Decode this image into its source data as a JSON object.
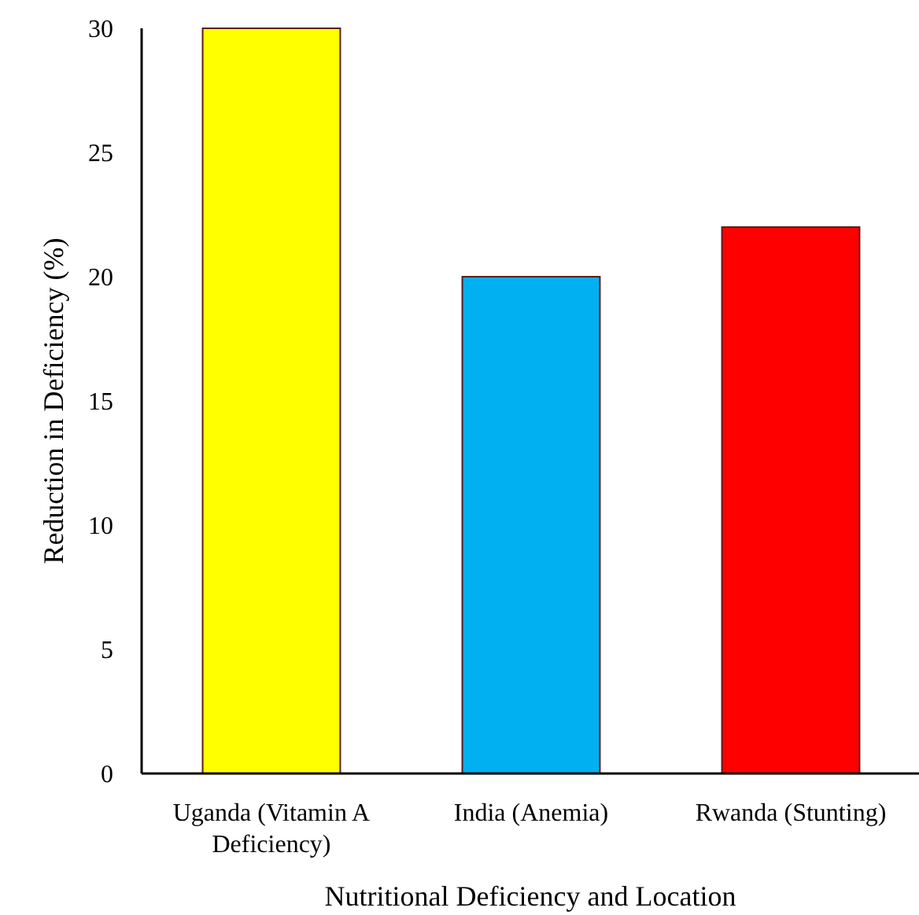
{
  "chart_data": {
    "type": "bar",
    "xlabel": "Nutritional Deficiency and Location",
    "ylabel": "Reduction in Deficiency (%)",
    "categories": [
      "Uganda (Vitamin A Deficiency)",
      "India (Anemia)",
      "Rwanda (Stunting)"
    ],
    "values": [
      30,
      20,
      22
    ],
    "colors": [
      "#ffff00",
      "#00b0f0",
      "#ff0000"
    ],
    "ylim": [
      0,
      30
    ],
    "yticks": [
      0,
      5,
      10,
      15,
      20,
      25,
      30
    ],
    "grid": false
  }
}
